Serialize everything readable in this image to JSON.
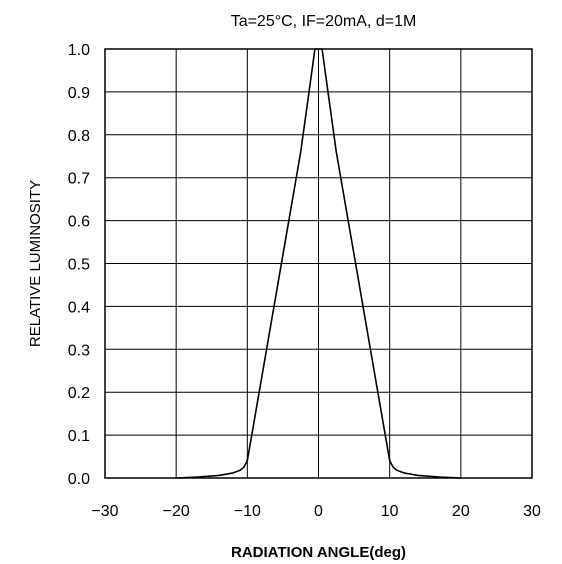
{
  "chart_data": {
    "type": "line",
    "title": "Ta=25°C, IF=20mA, d=1M",
    "xlabel": "RADIATION ANGLE(deg)",
    "ylabel": "RELATIVE LUMINOSITY",
    "xlim": [
      -30,
      30
    ],
    "ylim": [
      0,
      1.0
    ],
    "xticks": [
      -30,
      -20,
      -10,
      0,
      10,
      20,
      30
    ],
    "xtick_labels": [
      "−30",
      "−20",
      "−10",
      "0",
      "10",
      "20",
      "30"
    ],
    "yticks": [
      0.0,
      0.1,
      0.2,
      0.3,
      0.4,
      0.5,
      0.6,
      0.7,
      0.8,
      0.9,
      1.0
    ],
    "ytick_labels": [
      "0.0",
      "0.1",
      "0.2",
      "0.3",
      "0.4",
      "0.5",
      "0.6",
      "0.7",
      "0.8",
      "0.9",
      "1.0"
    ],
    "grid": true,
    "series": [
      {
        "color": "#000000",
        "x": [
          -20,
          -17,
          -14,
          -12,
          -11,
          -10.5,
          -10,
          -7.5,
          -5,
          -2.5,
          -1,
          -0.5,
          0,
          0.5,
          1,
          2.5,
          5,
          7.5,
          10,
          10.5,
          11,
          12,
          14,
          17,
          20
        ],
        "y": [
          0.0,
          0.002,
          0.006,
          0.012,
          0.018,
          0.025,
          0.04,
          0.28,
          0.52,
          0.76,
          0.94,
          1.0,
          1.0,
          1.0,
          0.94,
          0.76,
          0.52,
          0.28,
          0.04,
          0.025,
          0.018,
          0.012,
          0.006,
          0.002,
          0.0
        ]
      }
    ]
  }
}
